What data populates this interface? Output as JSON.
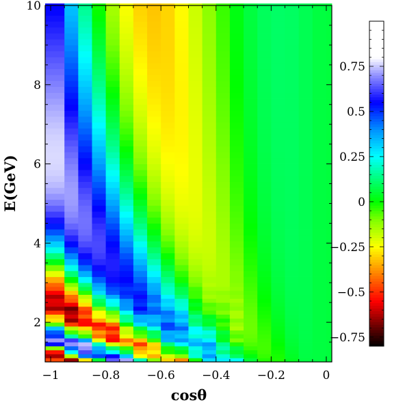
{
  "chart_data": {
    "type": "heatmap",
    "title": "",
    "xlabel": "cosθ",
    "ylabel": "E(GeV)",
    "xlim": [
      -1.02,
      0.02
    ],
    "ylim": [
      1,
      10
    ],
    "x_ticks": [
      -1,
      -0.8,
      -0.6,
      -0.4,
      -0.2,
      0
    ],
    "x_tick_labels": [
      "−1",
      "−0.8",
      "−0.6",
      "−0.4",
      "−0.2",
      "0"
    ],
    "y_ticks": [
      2,
      4,
      6,
      8,
      10
    ],
    "y_tick_labels": [
      "2",
      "4",
      "6",
      "8",
      "10"
    ],
    "x_bin_edges": [
      -1.02,
      -0.95,
      -0.9,
      -0.85,
      -0.8,
      -0.75,
      -0.7,
      -0.65,
      -0.6,
      -0.55,
      -0.5,
      -0.45,
      -0.4,
      -0.35,
      -0.3,
      -0.25,
      -0.2,
      -0.15,
      -0.1,
      -0.05,
      0.0,
      0.02
    ],
    "colorbar": {
      "range": [
        -0.8,
        1.0
      ],
      "ticks": [
        0.75,
        0.5,
        0.25,
        0,
        -0.25,
        -0.5,
        -0.75
      ],
      "tick_labels": [
        "0.75",
        "0.5",
        "0.25",
        "0",
        "−0.25",
        "−0.5",
        "−0.75"
      ],
      "colormap": [
        [
          -0.8,
          "#000000"
        ],
        [
          -0.7,
          "#600000"
        ],
        [
          -0.55,
          "#ff0000"
        ],
        [
          -0.4,
          "#ff8000"
        ],
        [
          -0.25,
          "#ffff00"
        ],
        [
          -0.1,
          "#80ff00"
        ],
        [
          0.0,
          "#00ff00"
        ],
        [
          0.15,
          "#00ff90"
        ],
        [
          0.25,
          "#00ffff"
        ],
        [
          0.4,
          "#0090ff"
        ],
        [
          0.55,
          "#0000ff"
        ],
        [
          0.7,
          "#9090ff"
        ],
        [
          0.8,
          "#ffffff"
        ],
        [
          1.0,
          "#ffffff"
        ]
      ]
    },
    "pattern": "oscillating value vs energy per cosθ column; amplitude ~0.7 at cosθ=-1 decaying to 0 near cosθ=0; oscillation faster at low E and more negative cosθ"
  }
}
